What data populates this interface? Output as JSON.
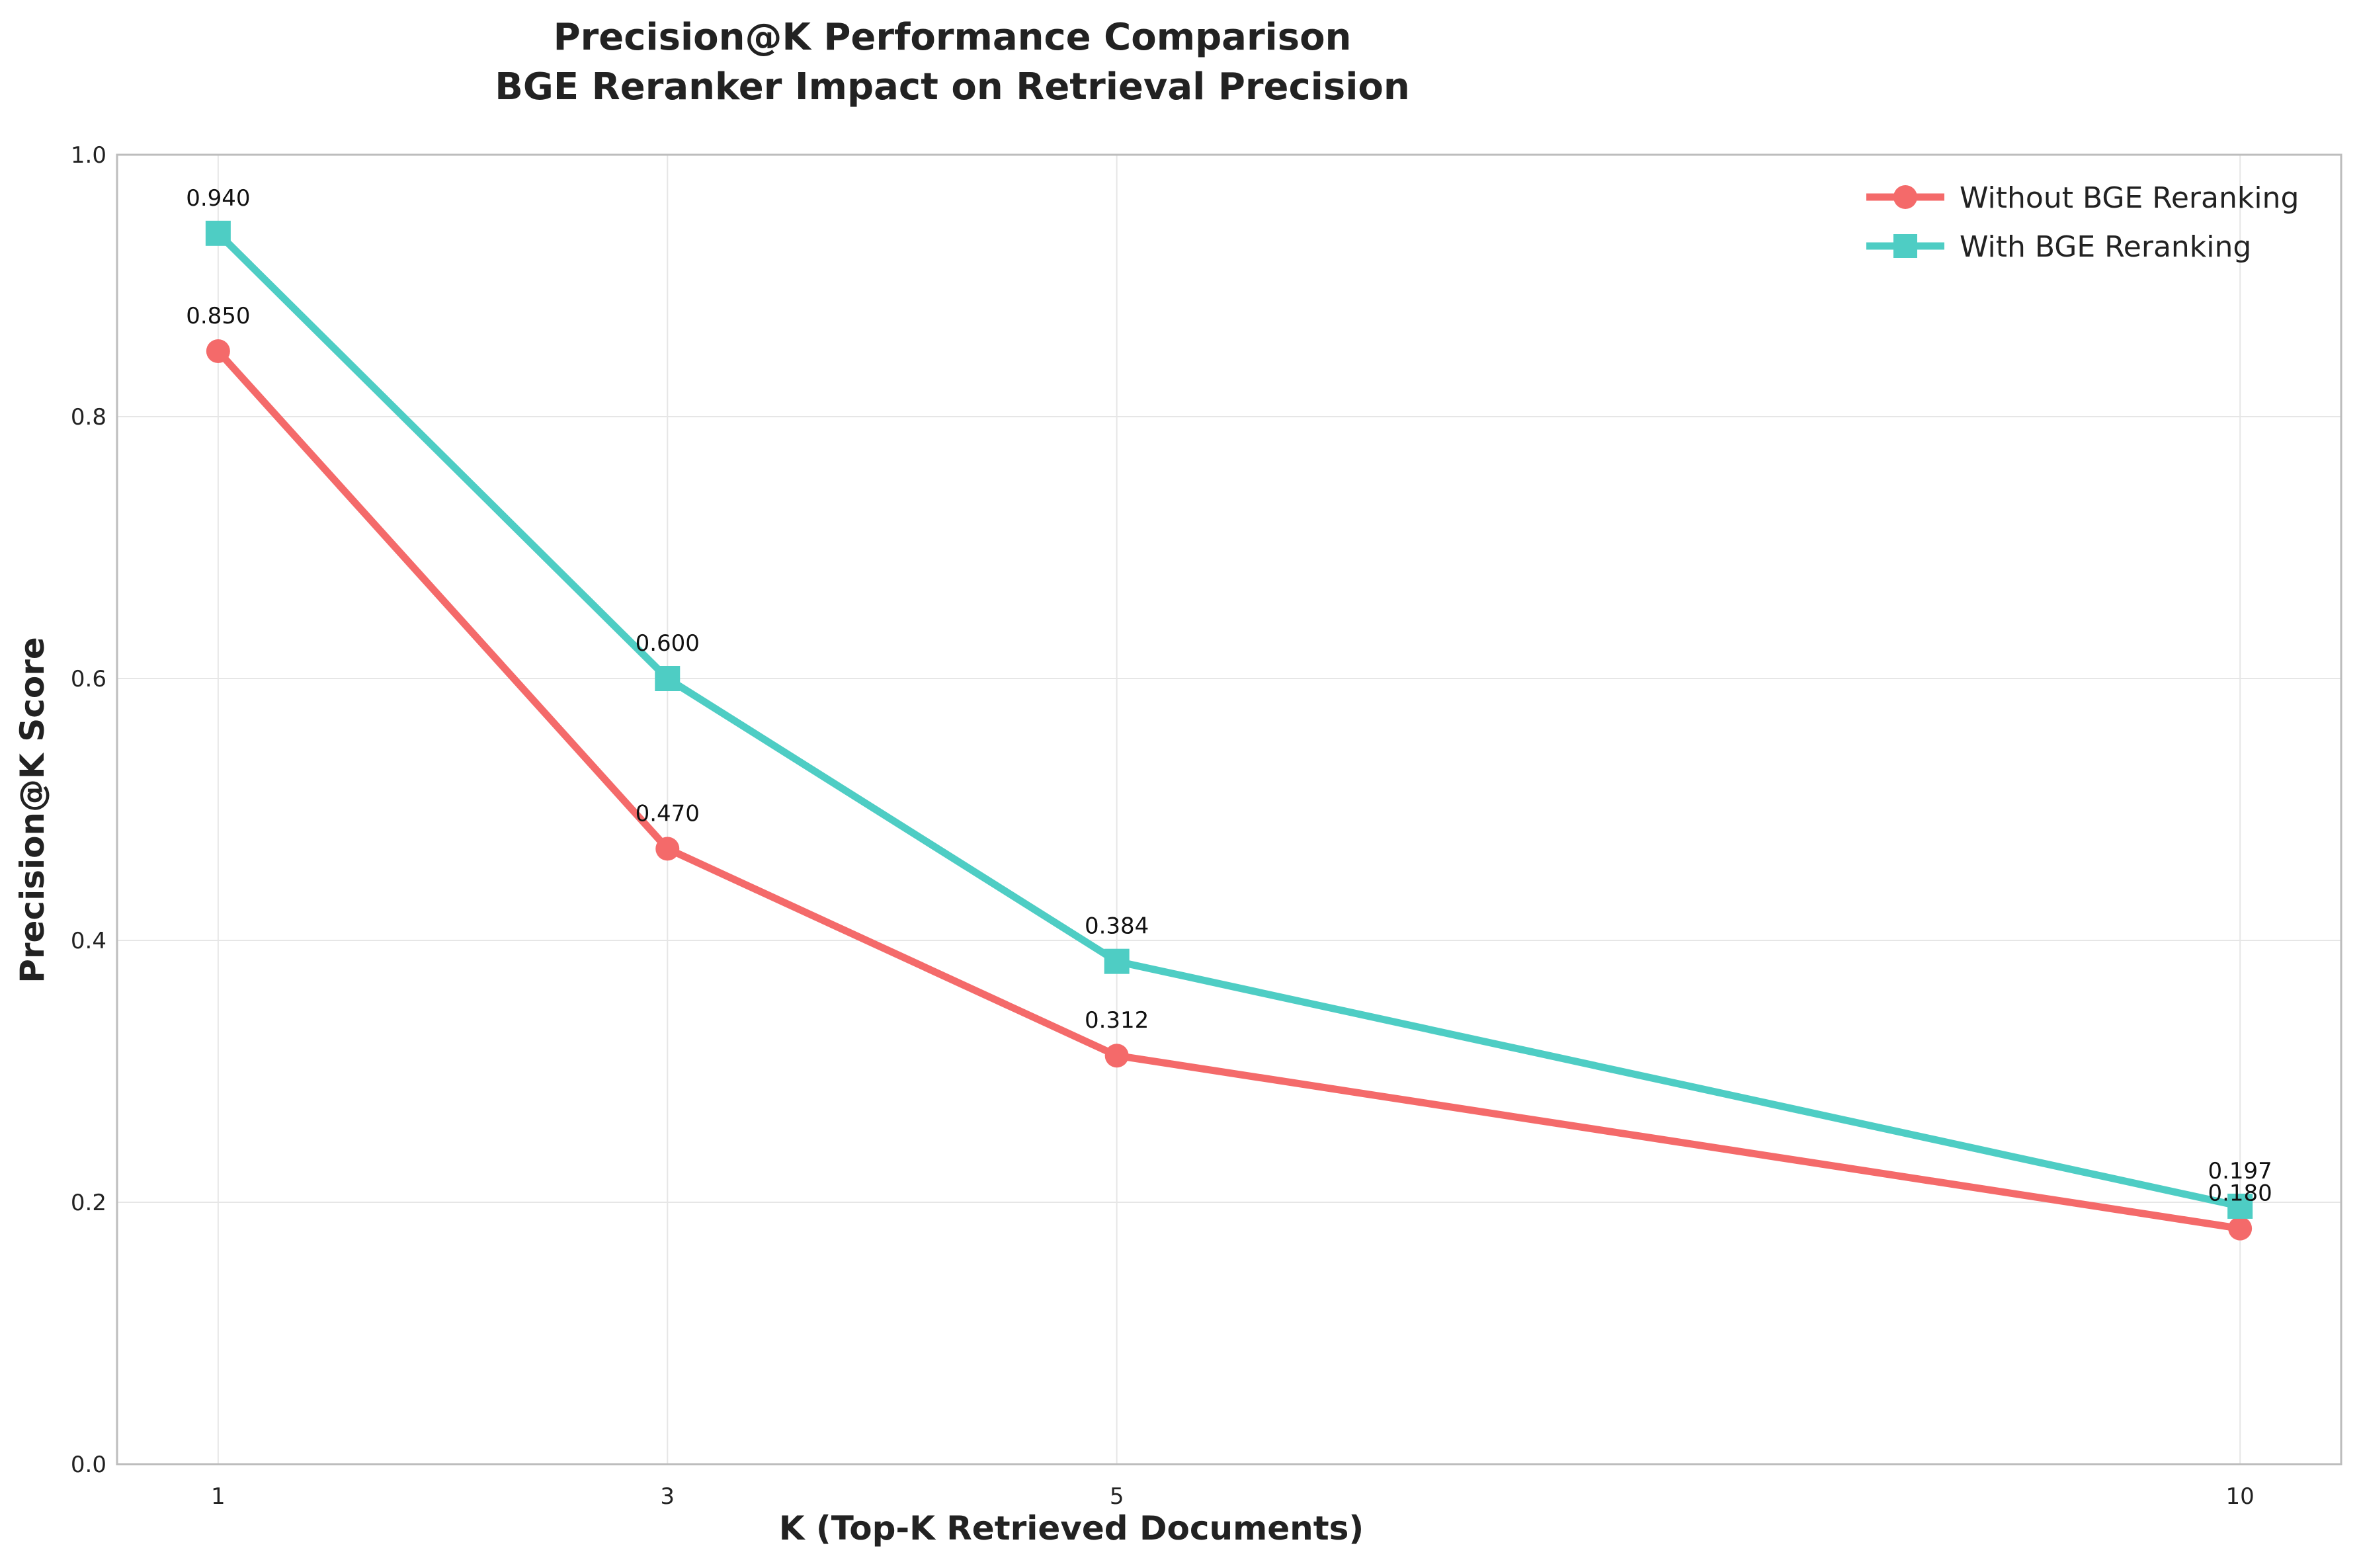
{
  "chart_data": {
    "type": "line",
    "title": "Precision@K Performance Comparison",
    "subtitle": "BGE Reranker Impact on Retrieval Precision",
    "xlabel": "K (Top-K Retrieved Documents)",
    "ylabel": "Precision@K Score",
    "x": [
      1,
      3,
      5,
      10
    ],
    "x_tick_labels": [
      "1",
      "3",
      "5",
      "10"
    ],
    "xlim": [
      0.55,
      10.45
    ],
    "ylim": [
      0.0,
      1.0
    ],
    "y_ticks": [
      0.0,
      0.2,
      0.4,
      0.6,
      0.8,
      1.0
    ],
    "y_tick_labels": [
      "0.0",
      "0.2",
      "0.4",
      "0.6",
      "0.8",
      "1.0"
    ],
    "grid": true,
    "legend_position": "top-right",
    "series": [
      {
        "name": "Without BGE Reranking",
        "values": [
          0.85,
          0.47,
          0.312,
          0.18
        ],
        "data_labels": [
          "0.850",
          "0.470",
          "0.312",
          "0.180"
        ],
        "color": "#f46a6a",
        "marker": "circle"
      },
      {
        "name": "With BGE Reranking",
        "values": [
          0.94,
          0.6,
          0.384,
          0.197
        ],
        "data_labels": [
          "0.940",
          "0.600",
          "0.384",
          "0.197"
        ],
        "color": "#4ecdc4",
        "marker": "square"
      }
    ]
  }
}
